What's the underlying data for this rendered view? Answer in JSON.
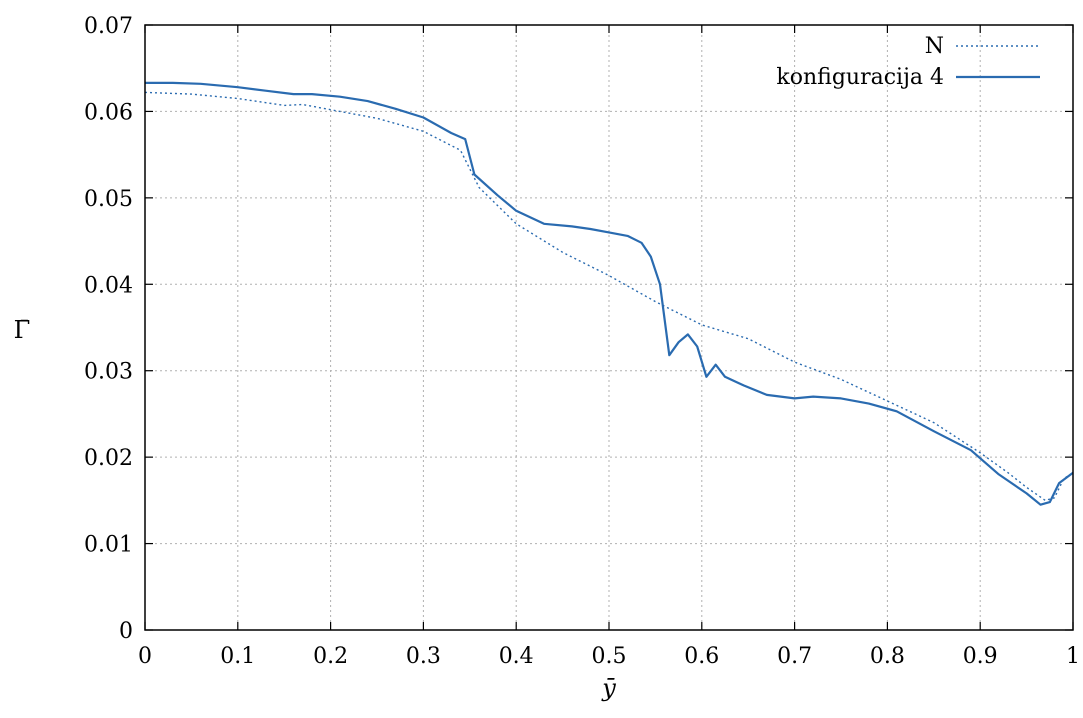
{
  "chart_data": {
    "type": "line",
    "xlabel": "ȳ",
    "ylabel": "Γ̄",
    "xlim": [
      0,
      1
    ],
    "ylim": [
      0,
      0.07
    ],
    "x_ticks": [
      "0",
      "0.1",
      "0.2",
      "0.3",
      "0.4",
      "0.5",
      "0.6",
      "0.7",
      "0.8",
      "0.9",
      "1"
    ],
    "y_ticks": [
      "0",
      "0.01",
      "0.02",
      "0.03",
      "0.04",
      "0.05",
      "0.06",
      "0.07"
    ],
    "grid": true,
    "legend_position": "top-right",
    "colors": {
      "series": "#2a6bb0"
    },
    "series": [
      {
        "name": "N",
        "style": "dotted",
        "x": [
          0.0,
          0.05,
          0.1,
          0.15,
          0.17,
          0.2,
          0.25,
          0.3,
          0.34,
          0.36,
          0.4,
          0.45,
          0.5,
          0.55,
          0.6,
          0.65,
          0.7,
          0.75,
          0.8,
          0.85,
          0.9,
          0.93,
          0.95,
          0.97,
          0.98,
          0.99,
          1.0
        ],
        "y": [
          0.0622,
          0.062,
          0.0615,
          0.0607,
          0.0608,
          0.0602,
          0.0592,
          0.0577,
          0.0555,
          0.0512,
          0.047,
          0.0437,
          0.041,
          0.038,
          0.0353,
          0.0337,
          0.031,
          0.029,
          0.0265,
          0.024,
          0.0205,
          0.0182,
          0.0165,
          0.015,
          0.0153,
          0.0175,
          0.0182
        ]
      },
      {
        "name": "konfiguracija 4",
        "style": "solid",
        "x": [
          0.0,
          0.03,
          0.06,
          0.1,
          0.13,
          0.16,
          0.18,
          0.21,
          0.24,
          0.27,
          0.3,
          0.33,
          0.345,
          0.355,
          0.38,
          0.4,
          0.43,
          0.46,
          0.48,
          0.5,
          0.52,
          0.535,
          0.545,
          0.555,
          0.565,
          0.575,
          0.585,
          0.595,
          0.605,
          0.615,
          0.625,
          0.645,
          0.67,
          0.7,
          0.72,
          0.75,
          0.78,
          0.81,
          0.85,
          0.89,
          0.92,
          0.95,
          0.965,
          0.975,
          0.985,
          1.0
        ],
        "y": [
          0.0633,
          0.0633,
          0.0632,
          0.0628,
          0.0624,
          0.062,
          0.062,
          0.0617,
          0.0612,
          0.0603,
          0.0593,
          0.0575,
          0.0568,
          0.0527,
          0.0503,
          0.0485,
          0.047,
          0.0467,
          0.0464,
          0.046,
          0.0456,
          0.0448,
          0.0432,
          0.04,
          0.0318,
          0.0333,
          0.0342,
          0.0328,
          0.0293,
          0.0307,
          0.0293,
          0.0283,
          0.0272,
          0.0268,
          0.027,
          0.0268,
          0.0262,
          0.0253,
          0.023,
          0.0208,
          0.018,
          0.0158,
          0.0145,
          0.0148,
          0.017,
          0.0182
        ]
      }
    ]
  }
}
